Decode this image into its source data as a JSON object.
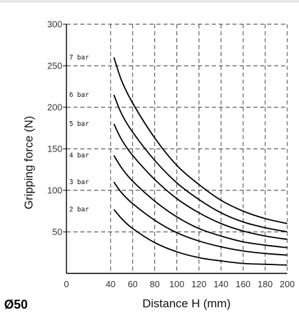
{
  "model_label": "Ø50",
  "chart_data": {
    "type": "line",
    "title": "",
    "xlabel": "Distance H (mm)",
    "ylabel": "Gripping force (N)",
    "xlim": [
      0,
      200
    ],
    "ylim": [
      0,
      300
    ],
    "xticks": [
      0,
      40,
      60,
      80,
      100,
      120,
      140,
      160,
      180,
      200
    ],
    "yticks": [
      50,
      100,
      150,
      200,
      250,
      300
    ],
    "grid": "dashed",
    "legend": "inline labels at curve starts",
    "color": "#000000",
    "x": [
      43,
      50,
      60,
      80,
      100,
      120,
      140,
      160,
      180,
      200
    ],
    "series": [
      {
        "name": "7 bar",
        "values": [
          260,
          232,
          205,
          163,
          130,
          107,
          88,
          75,
          66,
          60
        ]
      },
      {
        "name": "6 bar",
        "values": [
          215,
          192,
          170,
          136,
          109,
          89,
          73,
          62,
          55,
          50
        ]
      },
      {
        "name": "5 bar",
        "values": [
          180,
          161,
          142,
          113,
          90,
          73,
          60,
          51,
          45,
          41
        ]
      },
      {
        "name": "4 bar",
        "values": [
          142,
          127,
          111,
          87,
          68,
          54,
          45,
          38,
          34,
          31
        ]
      },
      {
        "name": "3 bar",
        "values": [
          110,
          97,
          84,
          64,
          49,
          39,
          32,
          27,
          24,
          22
        ]
      },
      {
        "name": "2 bar",
        "values": [
          77,
          66,
          54,
          37,
          26,
          19,
          15,
          12,
          11,
          10
        ]
      }
    ]
  }
}
